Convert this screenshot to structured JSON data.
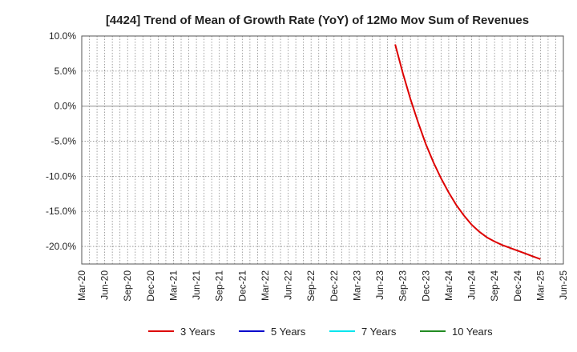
{
  "chart_data": {
    "type": "line",
    "title": "[4424]  Trend of Mean of Growth Rate (YoY) of 12Mo Mov Sum of Revenues",
    "xlabel": "",
    "ylabel": "",
    "x_ticks": [
      "Mar-20",
      "Jun-20",
      "Sep-20",
      "Dec-20",
      "Mar-21",
      "Jun-21",
      "Sep-21",
      "Dec-21",
      "Mar-22",
      "Jun-22",
      "Sep-22",
      "Dec-22",
      "Mar-23",
      "Jun-23",
      "Sep-23",
      "Dec-23",
      "Mar-24",
      "Jun-24",
      "Sep-24",
      "Dec-24",
      "Mar-25",
      "Jun-25"
    ],
    "y_ticks": [
      10,
      5,
      0,
      -5,
      -10,
      -15,
      -20
    ],
    "y_tick_labels": [
      "10.0%",
      "5.0%",
      "0.0%",
      "-5.0%",
      "-10.0%",
      "-15.0%",
      "-20.0%"
    ],
    "ylim": [
      -22.5,
      10
    ],
    "grid": true,
    "legend_position": "bottom",
    "series": [
      {
        "name": "3 Years",
        "color": "#dd0000",
        "x": [
          "Aug-23",
          "Sep-23",
          "Oct-23",
          "Nov-23",
          "Dec-23",
          "Jan-24",
          "Feb-24",
          "Mar-24",
          "Apr-24",
          "May-24",
          "Jun-24",
          "Jul-24",
          "Aug-24",
          "Sep-24",
          "Oct-24",
          "Nov-24",
          "Dec-24",
          "Jan-25",
          "Feb-25",
          "Mar-25"
        ],
        "values": [
          8.8,
          4.7,
          1.0,
          -2.3,
          -5.4,
          -8.0,
          -10.3,
          -12.3,
          -14.1,
          -15.6,
          -16.9,
          -17.9,
          -18.7,
          -19.3,
          -19.8,
          -20.2,
          -20.6,
          -21.0,
          -21.4,
          -21.8
        ]
      },
      {
        "name": "5 Years",
        "color": "#0000cc",
        "x": [],
        "values": []
      },
      {
        "name": "7 Years",
        "color": "#00e5ee",
        "x": [],
        "values": []
      },
      {
        "name": "10 Years",
        "color": "#228b22",
        "x": [],
        "values": []
      }
    ]
  }
}
